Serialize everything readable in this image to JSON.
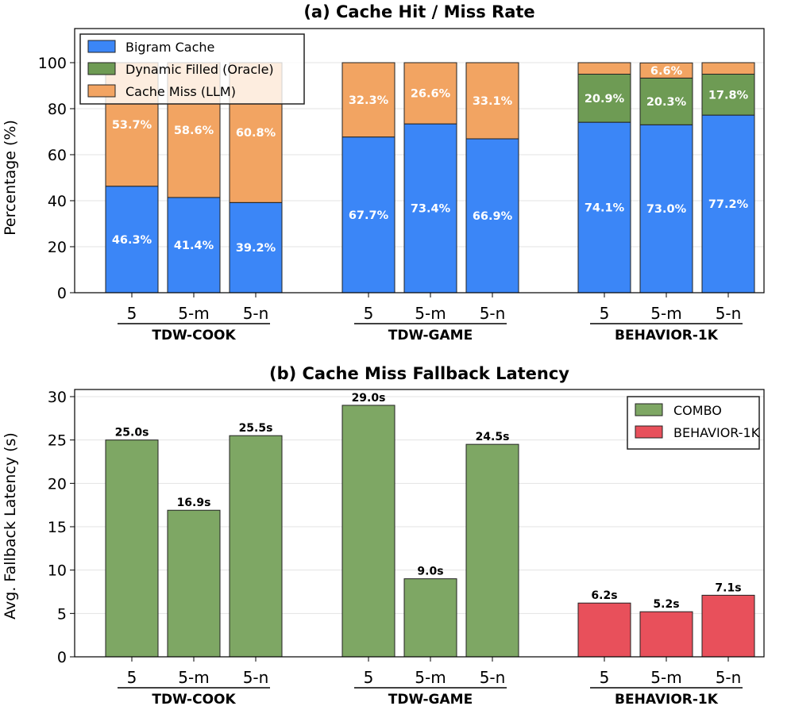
{
  "colors": {
    "bigram": "#3b86f7",
    "dynamic": "#6e9b54",
    "miss": "#f2a462",
    "combo": "#7ea764",
    "behavior": "#e8505b",
    "grid": "#e3e3e3"
  },
  "chart_data": [
    {
      "type": "bar",
      "stacked": true,
      "title": "(a) Cache Hit / Miss Rate",
      "ylabel": "Percentage (%)",
      "ylim": [
        0,
        100
      ],
      "yticks": [
        0,
        20,
        40,
        60,
        80,
        100
      ],
      "grid": true,
      "legend_position": "top-left",
      "groups": [
        {
          "name": "TDW-COOK",
          "categories": [
            "5",
            "5-m",
            "5-n"
          ]
        },
        {
          "name": "TDW-GAME",
          "categories": [
            "5",
            "5-m",
            "5-n"
          ]
        },
        {
          "name": "BEHAVIOR-1K",
          "categories": [
            "5",
            "5-m",
            "5-n"
          ]
        }
      ],
      "series": [
        {
          "name": "Bigram Cache",
          "color_key": "bigram",
          "values": [
            46.3,
            41.4,
            39.2,
            67.7,
            73.4,
            66.9,
            74.1,
            73.0,
            77.2
          ],
          "labels": [
            "46.3%",
            "41.4%",
            "39.2%",
            "67.7%",
            "73.4%",
            "66.9%",
            "74.1%",
            "73.0%",
            "77.2%"
          ]
        },
        {
          "name": "Dynamic Filled (Oracle)",
          "color_key": "dynamic",
          "values": [
            0,
            0,
            0,
            0,
            0,
            0,
            20.9,
            20.3,
            17.8
          ],
          "labels": [
            "",
            "",
            "",
            "",
            "",
            "",
            "20.9%",
            "20.3%",
            "17.8%"
          ]
        },
        {
          "name": "Cache Miss (LLM)",
          "color_key": "miss",
          "values": [
            53.7,
            58.6,
            60.8,
            32.3,
            26.6,
            33.1,
            5.0,
            6.6,
            5.0
          ],
          "labels": [
            "53.7%",
            "58.6%",
            "60.8%",
            "32.3%",
            "26.6%",
            "33.1%",
            "",
            "6.6%",
            ""
          ]
        }
      ]
    },
    {
      "type": "bar",
      "title": "(b) Cache Miss Fallback Latency",
      "ylabel": "Avg. Fallback Latency (s)",
      "ylim": [
        0,
        30
      ],
      "yticks": [
        0,
        5,
        10,
        15,
        20,
        25,
        30
      ],
      "grid": true,
      "legend_position": "top-right",
      "groups": [
        {
          "name": "TDW-COOK",
          "categories": [
            "5",
            "5-m",
            "5-n"
          ]
        },
        {
          "name": "TDW-GAME",
          "categories": [
            "5",
            "5-m",
            "5-n"
          ]
        },
        {
          "name": "BEHAVIOR-1K",
          "categories": [
            "5",
            "5-m",
            "5-n"
          ]
        }
      ],
      "legend": [
        {
          "name": "COMBO",
          "color_key": "combo"
        },
        {
          "name": "BEHAVIOR-1K",
          "color_key": "behavior"
        }
      ],
      "values": [
        25.0,
        16.9,
        25.5,
        29.0,
        9.0,
        24.5,
        6.2,
        5.2,
        7.1
      ],
      "labels": [
        "25.0s",
        "16.9s",
        "25.5s",
        "29.0s",
        "9.0s",
        "24.5s",
        "6.2s",
        "5.2s",
        "7.1s"
      ],
      "bar_color_keys": [
        "combo",
        "combo",
        "combo",
        "combo",
        "combo",
        "combo",
        "behavior",
        "behavior",
        "behavior"
      ]
    }
  ]
}
